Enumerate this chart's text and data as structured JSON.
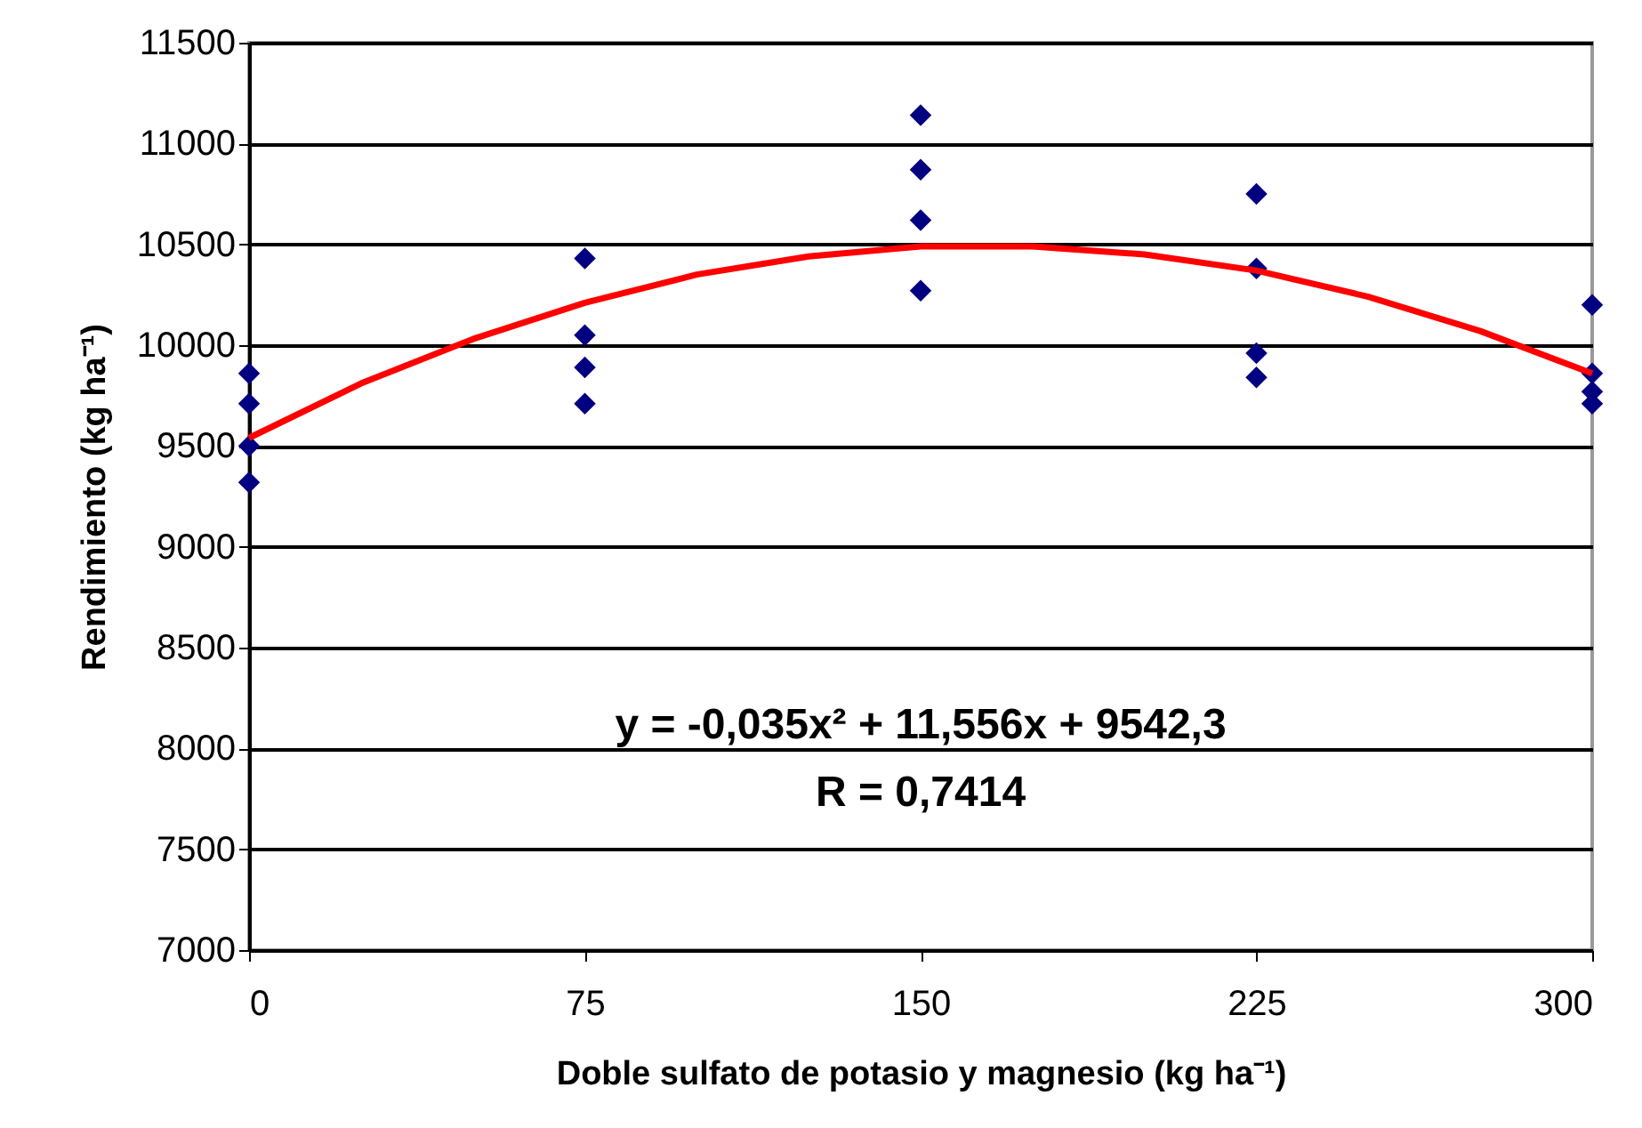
{
  "chart_data": {
    "type": "scatter",
    "xlabel": "Doble sulfato de potasio y magnesio (kg ha⁻¹)",
    "ylabel": "Rendimiento (kg ha⁻¹)",
    "xlim": [
      0,
      300
    ],
    "xticks": [
      0,
      75,
      150,
      225,
      300
    ],
    "ylim": [
      7000,
      11500
    ],
    "yticks": [
      7000,
      7500,
      8000,
      8500,
      9000,
      9500,
      10000,
      10500,
      11000,
      11500
    ],
    "grid": "y",
    "marker": "diamond",
    "annotations": [
      "y = -0,035x² + 11,556x + 9542,3",
      "R = 0,7414"
    ],
    "series": [
      {
        "color": "#000080",
        "x": [
          0,
          0,
          0,
          0,
          75,
          75,
          75,
          75,
          150,
          150,
          150,
          150,
          225,
          225,
          225,
          225,
          300,
          300,
          300,
          300
        ],
        "values": [
          9860,
          9710,
          9500,
          9320,
          10430,
          10050,
          9890,
          9710,
          11140,
          10870,
          10620,
          10270,
          10750,
          10380,
          9960,
          9840,
          10200,
          9860,
          9770,
          9710
        ]
      },
      {
        "type": "line",
        "color": "#ff0000",
        "marker": "none",
        "x": [
          0,
          25,
          50,
          75,
          100,
          125,
          150,
          175,
          200,
          225,
          250,
          275,
          300
        ],
        "values": [
          9540,
          9810,
          10030,
          10210,
          10350,
          10440,
          10490,
          10490,
          10450,
          10370,
          10240,
          10070,
          9860
        ]
      }
    ]
  }
}
